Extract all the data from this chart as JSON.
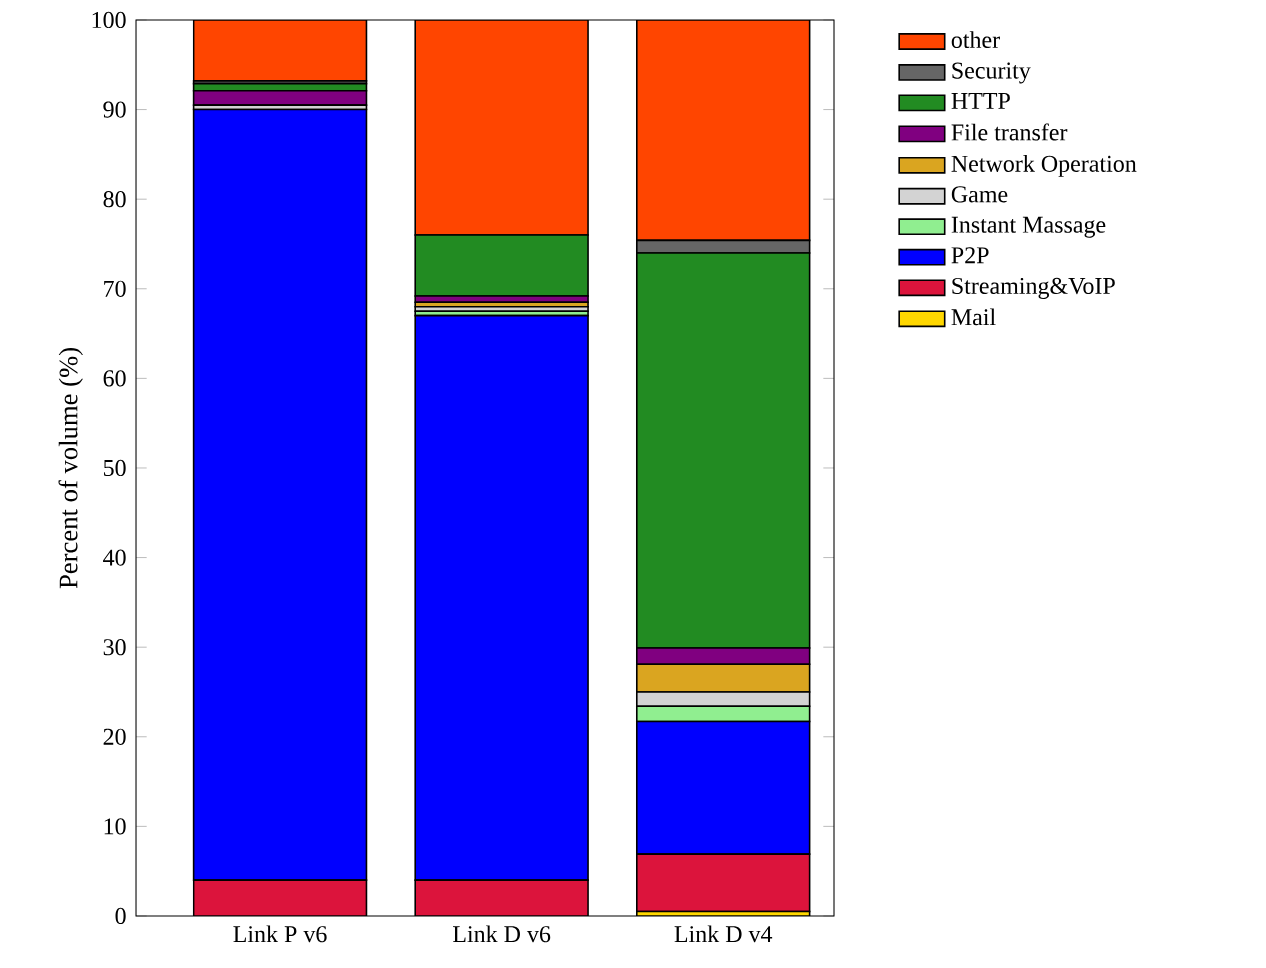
{
  "chart_data": {
    "type": "bar",
    "stacked": true,
    "ylabel": "Percent of volume (%)",
    "categories": [
      "Link P v6",
      "Link D v6",
      "Link D v4"
    ],
    "series": [
      {
        "name": "Mail",
        "color": "#ffd700",
        "values": [
          0,
          0,
          0.5
        ]
      },
      {
        "name": "Streaming&VoIP",
        "color": "#dc143c",
        "values": [
          4,
          4,
          6.4
        ]
      },
      {
        "name": "P2P",
        "color": "#0000ff",
        "values": [
          86,
          63,
          14.8
        ]
      },
      {
        "name": "Instant Massage",
        "color": "#90ee90",
        "values": [
          0,
          0.5,
          1.7
        ]
      },
      {
        "name": "Game",
        "color": "#d3d3d3",
        "values": [
          0.5,
          0.5,
          1.6
        ]
      },
      {
        "name": "Network Operation",
        "color": "#daa520",
        "values": [
          0,
          0.5,
          3.1
        ]
      },
      {
        "name": "File transfer",
        "color": "#800080",
        "values": [
          1.6,
          0.7,
          1.8
        ]
      },
      {
        "name": "HTTP",
        "color": "#228b22",
        "values": [
          0.8,
          6.8,
          44.1
        ]
      },
      {
        "name": "Security",
        "color": "#666666",
        "values": [
          0.3,
          0,
          1.4
        ]
      },
      {
        "name": "other",
        "color": "#ff4500",
        "values": [
          6.8,
          24,
          24.6
        ]
      }
    ],
    "ylim": [
      0,
      100
    ],
    "yticks": [
      0,
      10,
      20,
      30,
      40,
      50,
      60,
      70,
      80,
      90,
      100
    ],
    "grid": false,
    "legend": "right"
  }
}
